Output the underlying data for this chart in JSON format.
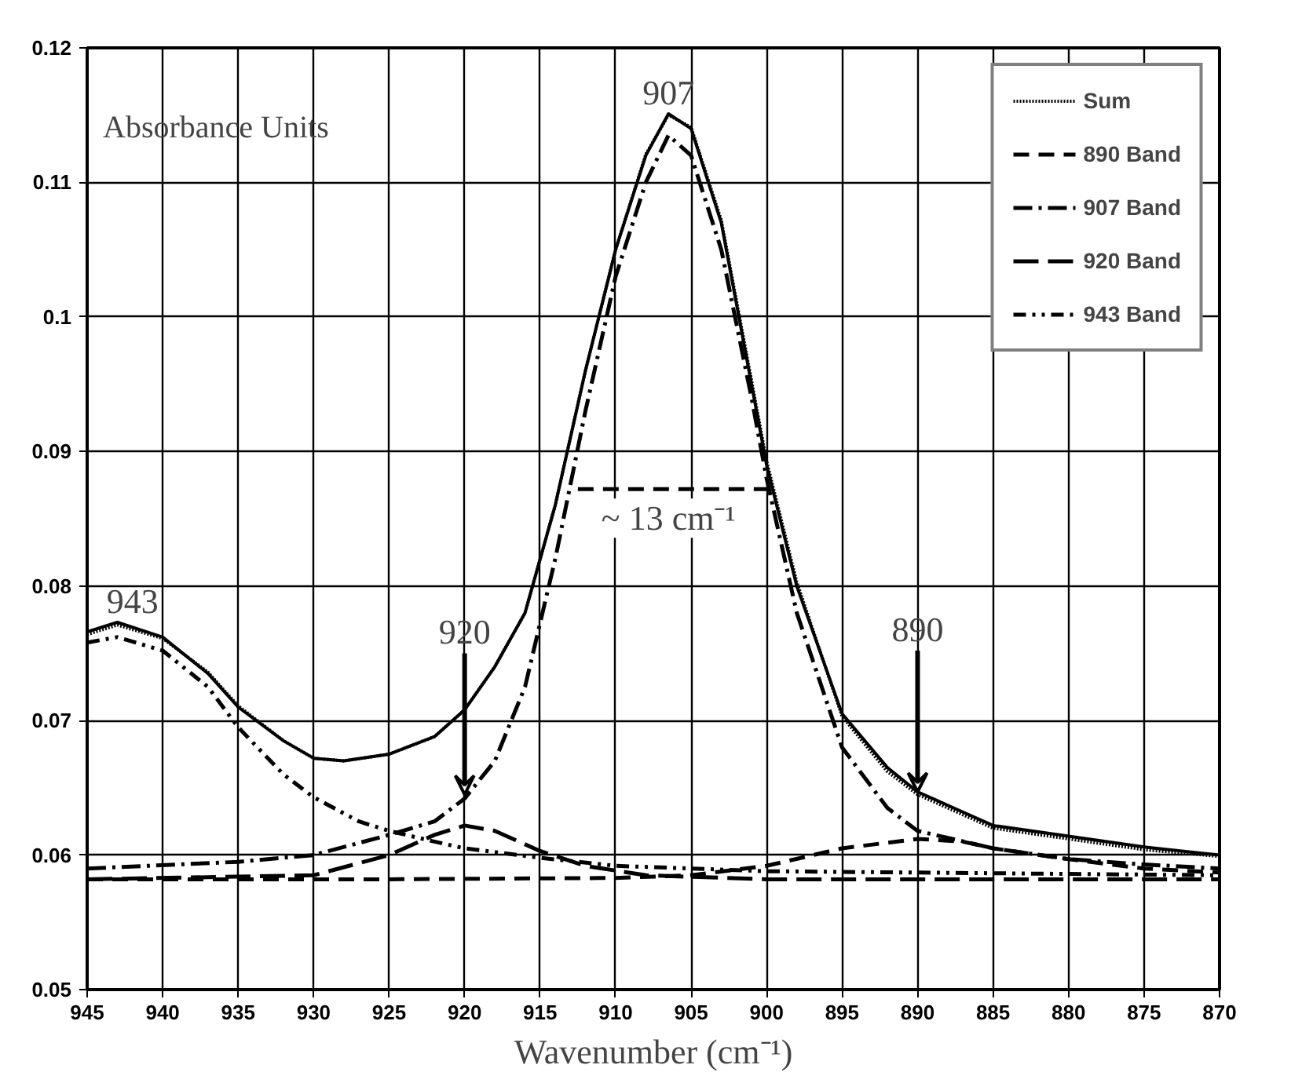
{
  "chart_data": {
    "type": "line",
    "ylabel": "Absorbance Units",
    "xlabel": "Wavenumber (cm⁻¹)",
    "xlim": [
      945,
      870
    ],
    "xticks": [
      945,
      940,
      935,
      930,
      925,
      920,
      915,
      910,
      905,
      900,
      895,
      890,
      885,
      880,
      875,
      870
    ],
    "ylim": [
      0.05,
      0.12
    ],
    "yticks": [
      0.05,
      0.06,
      0.07,
      0.08,
      0.09,
      0.1,
      0.11,
      0.12
    ],
    "grid": true,
    "legend": "top right",
    "marker": "none",
    "series": [
      {
        "color": "#000000",
        "line_style": "solid",
        "x": [
          945,
          943,
          940,
          937,
          935,
          932,
          930,
          928,
          925,
          922,
          920,
          918,
          916,
          914,
          912,
          910,
          908,
          906.5,
          905,
          903,
          901,
          900,
          898,
          895,
          892,
          890,
          887,
          885,
          880,
          875,
          870
        ],
        "values": [
          0.0766,
          0.0773,
          0.0762,
          0.0735,
          0.071,
          0.0685,
          0.0672,
          0.067,
          0.0675,
          0.0688,
          0.0708,
          0.074,
          0.078,
          0.086,
          0.096,
          0.105,
          0.112,
          0.1151,
          0.114,
          0.107,
          0.095,
          0.089,
          0.08,
          0.0705,
          0.0665,
          0.0647,
          0.0632,
          0.0622,
          0.0614,
          0.0606,
          0.06
        ]
      },
      {
        "name": "Sum",
        "color": "#000000",
        "line_style": "dotted",
        "x": [
          945,
          943,
          940,
          937,
          935,
          932,
          930,
          928,
          925,
          922,
          920,
          918,
          916,
          914,
          912,
          910,
          908,
          906.5,
          905,
          903,
          901,
          900,
          898,
          895,
          892,
          890,
          887,
          885,
          880,
          875,
          870
        ],
        "values": [
          0.0764,
          0.0771,
          0.0761,
          0.0736,
          0.0711,
          0.0685,
          0.0672,
          0.067,
          0.0675,
          0.0688,
          0.0708,
          0.074,
          0.078,
          0.086,
          0.096,
          0.105,
          0.1121,
          0.115,
          0.1141,
          0.1072,
          0.0953,
          0.0893,
          0.0803,
          0.0703,
          0.0662,
          0.0645,
          0.063,
          0.062,
          0.0612,
          0.0604,
          0.0599
        ]
      },
      {
        "name": "890 Band",
        "color": "#000000",
        "line_style": "dashed",
        "x": [
          945,
          925,
          910,
          905,
          900,
          895,
          890,
          887,
          885,
          880,
          875,
          870
        ],
        "values": [
          0.0582,
          0.0582,
          0.0583,
          0.0585,
          0.0592,
          0.0605,
          0.0612,
          0.061,
          0.0605,
          0.0597,
          0.059,
          0.0587
        ]
      },
      {
        "name": "907 Band",
        "color": "#000000",
        "line_style": "dashdot",
        "x": [
          945,
          935,
          930,
          925,
          922,
          920,
          918,
          916,
          914,
          912,
          910,
          908,
          906.5,
          905,
          903,
          901,
          900,
          898,
          895,
          892,
          890,
          885,
          880,
          875,
          870
        ],
        "values": [
          0.059,
          0.0595,
          0.06,
          0.0615,
          0.0625,
          0.0642,
          0.067,
          0.0725,
          0.082,
          0.093,
          0.103,
          0.11,
          0.1135,
          0.112,
          0.105,
          0.094,
          0.088,
          0.078,
          0.068,
          0.0635,
          0.0618,
          0.0605,
          0.0597,
          0.0593,
          0.059
        ]
      },
      {
        "name": "920 Band",
        "color": "#000000",
        "line_style": "longdash",
        "x": [
          945,
          930,
          925,
          922,
          920,
          918,
          915,
          912,
          908,
          900,
          870
        ],
        "values": [
          0.0582,
          0.0585,
          0.06,
          0.0615,
          0.0622,
          0.0618,
          0.0603,
          0.0592,
          0.0585,
          0.0582,
          0.0582
        ]
      },
      {
        "name": "943 Band",
        "color": "#000000",
        "line_style": "dashdotdot",
        "x": [
          945,
          943,
          940,
          937,
          935,
          932,
          930,
          927,
          925,
          922,
          920,
          915,
          910,
          900,
          890,
          870
        ],
        "values": [
          0.0758,
          0.0762,
          0.0752,
          0.0725,
          0.0695,
          0.066,
          0.0643,
          0.0625,
          0.0618,
          0.061,
          0.0605,
          0.0598,
          0.0592,
          0.0588,
          0.0587,
          0.0585
        ]
      },
      {
        "color": "#000000",
        "line_style": "dashed",
        "x": [
          912.5,
          900
        ],
        "values": [
          0.0872,
          0.0872
        ]
      }
    ],
    "annotations": [
      {
        "text": "907",
        "x": 906.5,
        "y": 0.1151
      },
      {
        "text": "943",
        "x": 942,
        "y": 0.0773
      },
      {
        "text": "920",
        "x": 920,
        "y": 0.0645
      },
      {
        "text": "890",
        "x": 890,
        "y": 0.0647
      },
      {
        "text": "~ 13 cm⁻¹",
        "x": 906.5,
        "y": 0.0872
      }
    ]
  }
}
